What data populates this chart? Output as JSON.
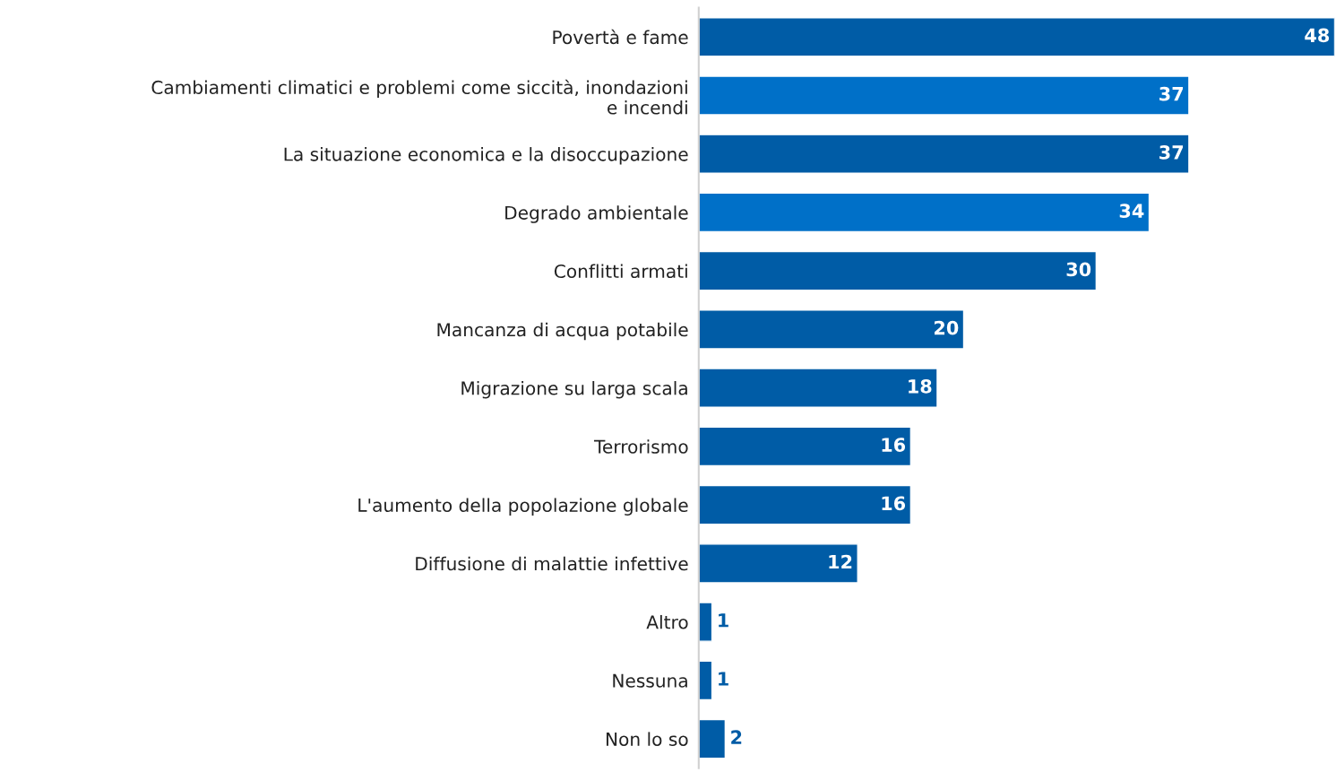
{
  "chart_data": {
    "type": "bar",
    "orientation": "horizontal",
    "data_labels": true,
    "grid": false,
    "legend": false,
    "categories": [
      "Povertà e fame",
      "Cambiamenti climatici e problemi come siccità, inondazioni\ne incendi",
      "La situazione economica e la disoccupazione",
      "Degrado ambientale",
      "Conflitti armati",
      "Mancanza di acqua potabile",
      "Migrazione su larga scala",
      "Terrorismo",
      "L'aumento della popolazione globale",
      "Diffusione di malattie infettive",
      "Altro",
      "Nessuna",
      "Non lo so"
    ],
    "values": [
      48,
      37,
      37,
      34,
      30,
      20,
      18,
      16,
      16,
      12,
      1,
      1,
      2
    ],
    "colors": [
      "#005ca6",
      "#0070c8",
      "#005ca6",
      "#0070c8",
      "#005ca6",
      "#005ca6",
      "#005ca6",
      "#005ca6",
      "#005ca6",
      "#005ca6",
      "#005ca6",
      "#005ca6",
      "#005ca6"
    ]
  }
}
